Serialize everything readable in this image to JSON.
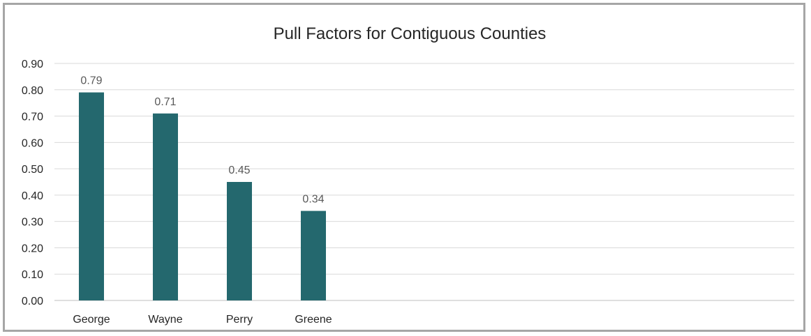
{
  "chart_data": {
    "type": "bar",
    "title": "Pull Factors for Contiguous Counties",
    "categories": [
      "George",
      "Wayne",
      "Perry",
      "Greene"
    ],
    "values": [
      0.79,
      0.71,
      0.45,
      0.34
    ],
    "data_labels": [
      "0.79",
      "0.71",
      "0.45",
      "0.34"
    ],
    "yticks": [
      "0.00",
      "0.10",
      "0.20",
      "0.30",
      "0.40",
      "0.50",
      "0.60",
      "0.70",
      "0.80",
      "0.90"
    ],
    "ylim": [
      0,
      0.9
    ],
    "xlabel": "",
    "ylabel": "",
    "grid": true,
    "legend": "none",
    "bar_color": "#24686e",
    "grid_color": "#d9d9d9"
  }
}
